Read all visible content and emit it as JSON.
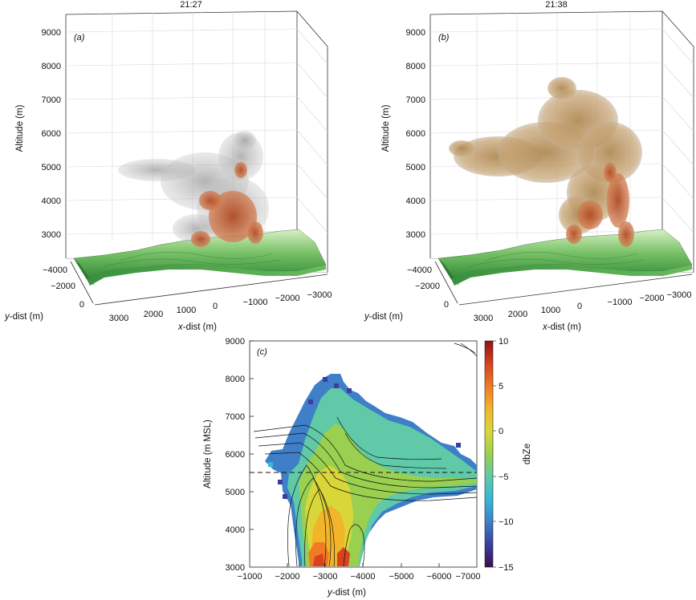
{
  "chart_data": [
    {
      "id": "a",
      "type": "volume-3d",
      "panel_label": "(a)",
      "time_title": "21:27",
      "zlabel": "Altitude (m)",
      "ylabel_prefix": "y",
      "ylabel_suffix": "-dist (m)",
      "xlabel_prefix": "x",
      "xlabel_suffix": "-dist (m)",
      "z_ticks": [
        "9000",
        "8000",
        "7000",
        "6000",
        "5000",
        "4000",
        "3000"
      ],
      "y_ticks": [
        "−4000",
        "−2000",
        "0"
      ],
      "x_ticks": [
        "3000",
        "2000",
        "1000",
        "0",
        "−1000",
        "−2000",
        "−3000"
      ],
      "colors": {
        "cloud": "#b8b8b8",
        "core": "#c86a3e",
        "terrain": "#4fa84a"
      }
    },
    {
      "id": "b",
      "type": "volume-3d",
      "panel_label": "(b)",
      "time_title": "21:38",
      "zlabel": "Altitude (m)",
      "ylabel_prefix": "y",
      "ylabel_suffix": "-dist (m)",
      "xlabel_prefix": "x",
      "xlabel_suffix": "-dist (m)",
      "z_ticks": [
        "9000",
        "8000",
        "7000",
        "6000",
        "5000",
        "4000",
        "3000"
      ],
      "y_ticks": [
        "−4000",
        "−2000",
        "0"
      ],
      "x_ticks": [
        "3000",
        "2000",
        "1000",
        "0",
        "−1000",
        "−2000",
        "−3000"
      ],
      "colors": {
        "cloud": "#c9a878",
        "core": "#c0532e",
        "terrain": "#4fa84a"
      }
    },
    {
      "id": "c",
      "type": "heatmap",
      "panel_label": "(c)",
      "xlabel_prefix": "y",
      "xlabel_suffix": "-dist (m)",
      "ylabel": "Altitude (m MSL)",
      "xlim": [
        -1000,
        -7000
      ],
      "ylim": [
        3000,
        9000
      ],
      "x_ticks": [
        "−1000",
        "−2000",
        "−3000",
        "−4000",
        "−5000",
        "−6000",
        "−7000"
      ],
      "y_ticks": [
        "9000",
        "8000",
        "7000",
        "6000",
        "5000",
        "4000",
        "3000"
      ],
      "dashed_line_altitude": 5500,
      "colorbar": {
        "label": "dbZe",
        "range": [
          -15,
          10
        ],
        "ticks": [
          "10",
          "5",
          "0",
          "−5",
          "−10",
          "−15"
        ],
        "colors": [
          "#3b0f4f",
          "#3a3f9e",
          "#3f7fc8",
          "#35b8d6",
          "#5fc9a8",
          "#9ad04f",
          "#d9d63a",
          "#f2b52a",
          "#ef7b22",
          "#d9411f",
          "#8e1414"
        ]
      }
    }
  ]
}
